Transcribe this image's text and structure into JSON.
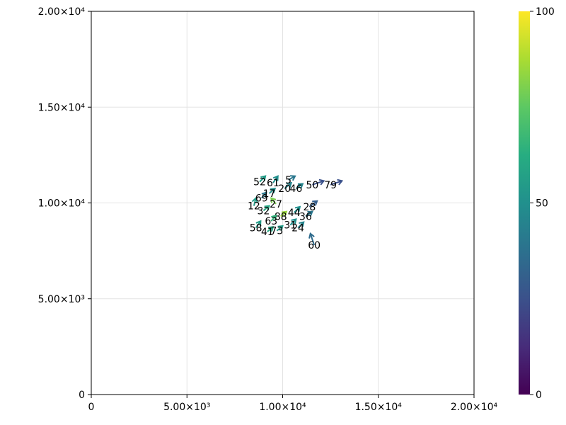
{
  "chart_data": {
    "type": "scatter",
    "title": "",
    "xlabel": "",
    "ylabel": "",
    "xlim": [
      0,
      20000
    ],
    "ylim": [
      0,
      20000
    ],
    "grid": true,
    "x_ticks": [
      "0",
      "5.00×10³",
      "1.00×10⁴",
      "1.50×10⁴",
      "2.00×10⁴"
    ],
    "y_ticks": [
      "0",
      "5.00×10³",
      "1.00×10⁴",
      "1.50×10⁴",
      "2.00×10⁴"
    ],
    "x_tick_values": [
      0,
      5000,
      10000,
      15000,
      20000
    ],
    "y_tick_values": [
      0,
      5000,
      10000,
      15000,
      20000
    ],
    "colorbar": {
      "colormap": "viridis",
      "range": [
        0,
        100
      ],
      "ticks": [
        "0",
        "50",
        "100"
      ],
      "tick_values": [
        0,
        50,
        100
      ],
      "colors": [
        "#440154",
        "#472c7a",
        "#3b518b",
        "#2c718e",
        "#21908d",
        "#27ad81",
        "#5cc863",
        "#aadc32",
        "#fde725"
      ]
    },
    "points": [
      {
        "label": "60",
        "x": 11650,
        "y": 7800,
        "dx": -200,
        "dy": 600,
        "c": 35
      },
      {
        "label": "50",
        "x": 11550,
        "y": 10950,
        "dx": 600,
        "dy": 200,
        "c": 25
      },
      {
        "label": "79",
        "x": 12500,
        "y": 10950,
        "dx": 600,
        "dy": 200,
        "c": 25
      },
      {
        "label": "46",
        "x": 10700,
        "y": 10750,
        "dx": 350,
        "dy": 250,
        "c": 45
      },
      {
        "label": "28",
        "x": 11400,
        "y": 9800,
        "dx": 400,
        "dy": 300,
        "c": 30
      },
      {
        "label": "12",
        "x": 8500,
        "y": 9850,
        "dx": 100,
        "dy": 400,
        "c": 55
      },
      {
        "label": "32",
        "x": 9000,
        "y": 9600,
        "dx": 300,
        "dy": 250,
        "c": 60
      },
      {
        "label": "27",
        "x": 9650,
        "y": 9950,
        "dx": -250,
        "dy": 300,
        "c": 80
      },
      {
        "label": "69",
        "x": 8900,
        "y": 10250,
        "dx": 250,
        "dy": 300,
        "c": 40
      },
      {
        "label": "17",
        "x": 9300,
        "y": 10500,
        "dx": 300,
        "dy": 250,
        "c": 50
      },
      {
        "label": "52",
        "x": 8800,
        "y": 11100,
        "dx": 300,
        "dy": 300,
        "c": 55
      },
      {
        "label": "61",
        "x": 9500,
        "y": 11050,
        "dx": 250,
        "dy": 350,
        "c": 50
      },
      {
        "label": "20",
        "x": 10100,
        "y": 10750,
        "dx": 350,
        "dy": 300,
        "c": 45
      },
      {
        "label": "5",
        "x": 10300,
        "y": 11200,
        "dx": 350,
        "dy": 200,
        "c": 40
      },
      {
        "label": "58",
        "x": 8600,
        "y": 8700,
        "dx": 250,
        "dy": 350,
        "c": 55
      },
      {
        "label": "41",
        "x": 9200,
        "y": 8500,
        "dx": 300,
        "dy": 250,
        "c": 60
      },
      {
        "label": "73",
        "x": 9700,
        "y": 8550,
        "dx": 300,
        "dy": 250,
        "c": 55
      },
      {
        "label": "31",
        "x": 10400,
        "y": 8850,
        "dx": 300,
        "dy": 300,
        "c": 50
      },
      {
        "label": "24",
        "x": 10800,
        "y": 8700,
        "dx": 300,
        "dy": 300,
        "c": 45
      },
      {
        "label": "36",
        "x": 11200,
        "y": 9300,
        "dx": 350,
        "dy": 250,
        "c": 40
      },
      {
        "label": "44",
        "x": 10600,
        "y": 9500,
        "dx": 300,
        "dy": 300,
        "c": 50
      },
      {
        "label": "88",
        "x": 9900,
        "y": 9300,
        "dx": 300,
        "dy": 250,
        "c": 85
      },
      {
        "label": "63",
        "x": 9400,
        "y": 9050,
        "dx": 250,
        "dy": 300,
        "c": 65
      }
    ]
  }
}
